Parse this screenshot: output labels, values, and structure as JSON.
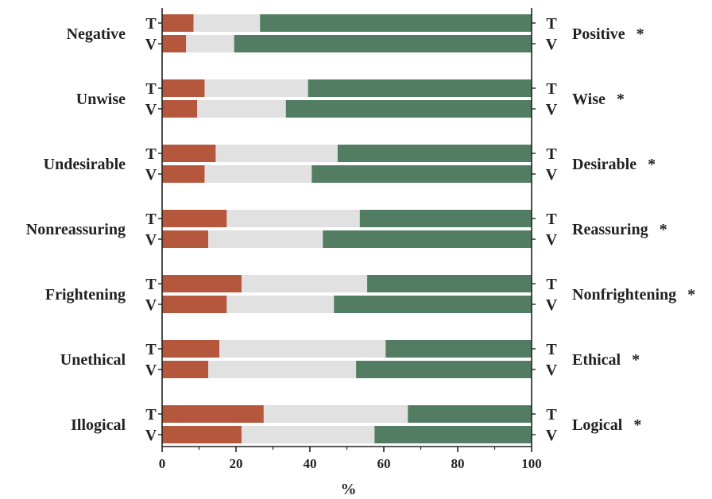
{
  "chart_data": {
    "type": "bar",
    "orientation": "horizontal",
    "stacked": true,
    "xlabel": "%",
    "xlim": [
      0,
      100
    ],
    "xticks": [
      0,
      20,
      40,
      60,
      80,
      100
    ],
    "grid": false,
    "colors": {
      "negative": "#b5573c",
      "neutral": "#e1e1e1",
      "positive": "#527d63"
    },
    "pairs": [
      {
        "left": "Negative",
        "right": "Positive",
        "marker": "*",
        "bars": [
          {
            "label": "T",
            "negative": 8.5,
            "neutral": 18,
            "positive": 73.5
          },
          {
            "label": "V",
            "negative": 6.5,
            "neutral": 13,
            "positive": 80.5
          }
        ]
      },
      {
        "left": "Unwise",
        "right": "Wise",
        "marker": "*",
        "bars": [
          {
            "label": "T",
            "negative": 11.5,
            "neutral": 28,
            "positive": 60.5
          },
          {
            "label": "V",
            "negative": 9.5,
            "neutral": 24,
            "positive": 66.5
          }
        ]
      },
      {
        "left": "Undesirable",
        "right": "Desirable",
        "marker": "*",
        "bars": [
          {
            "label": "T",
            "negative": 14.5,
            "neutral": 33,
            "positive": 52.5
          },
          {
            "label": "V",
            "negative": 11.5,
            "neutral": 29,
            "positive": 59.5
          }
        ]
      },
      {
        "left": "Nonreassuring",
        "right": "Reassuring",
        "marker": "*",
        "bars": [
          {
            "label": "T",
            "negative": 17.5,
            "neutral": 36,
            "positive": 46.5
          },
          {
            "label": "V",
            "negative": 12.5,
            "neutral": 31,
            "positive": 56.5
          }
        ]
      },
      {
        "left": "Frightening",
        "right": "Nonfrightening",
        "marker": "*",
        "bars": [
          {
            "label": "T",
            "negative": 21.5,
            "neutral": 34,
            "positive": 44.5
          },
          {
            "label": "V",
            "negative": 17.5,
            "neutral": 29,
            "positive": 53.5
          }
        ]
      },
      {
        "left": "Unethical",
        "right": "Ethical",
        "marker": "*",
        "bars": [
          {
            "label": "T",
            "negative": 15.5,
            "neutral": 45,
            "positive": 39.5
          },
          {
            "label": "V",
            "negative": 12.5,
            "neutral": 40,
            "positive": 47.5
          }
        ]
      },
      {
        "left": "Illogical",
        "right": "Logical",
        "marker": "*",
        "bars": [
          {
            "label": "T",
            "negative": 27.5,
            "neutral": 39,
            "positive": 33.5
          },
          {
            "label": "V",
            "negative": 21.5,
            "neutral": 36,
            "positive": 42.5
          }
        ]
      }
    ]
  }
}
